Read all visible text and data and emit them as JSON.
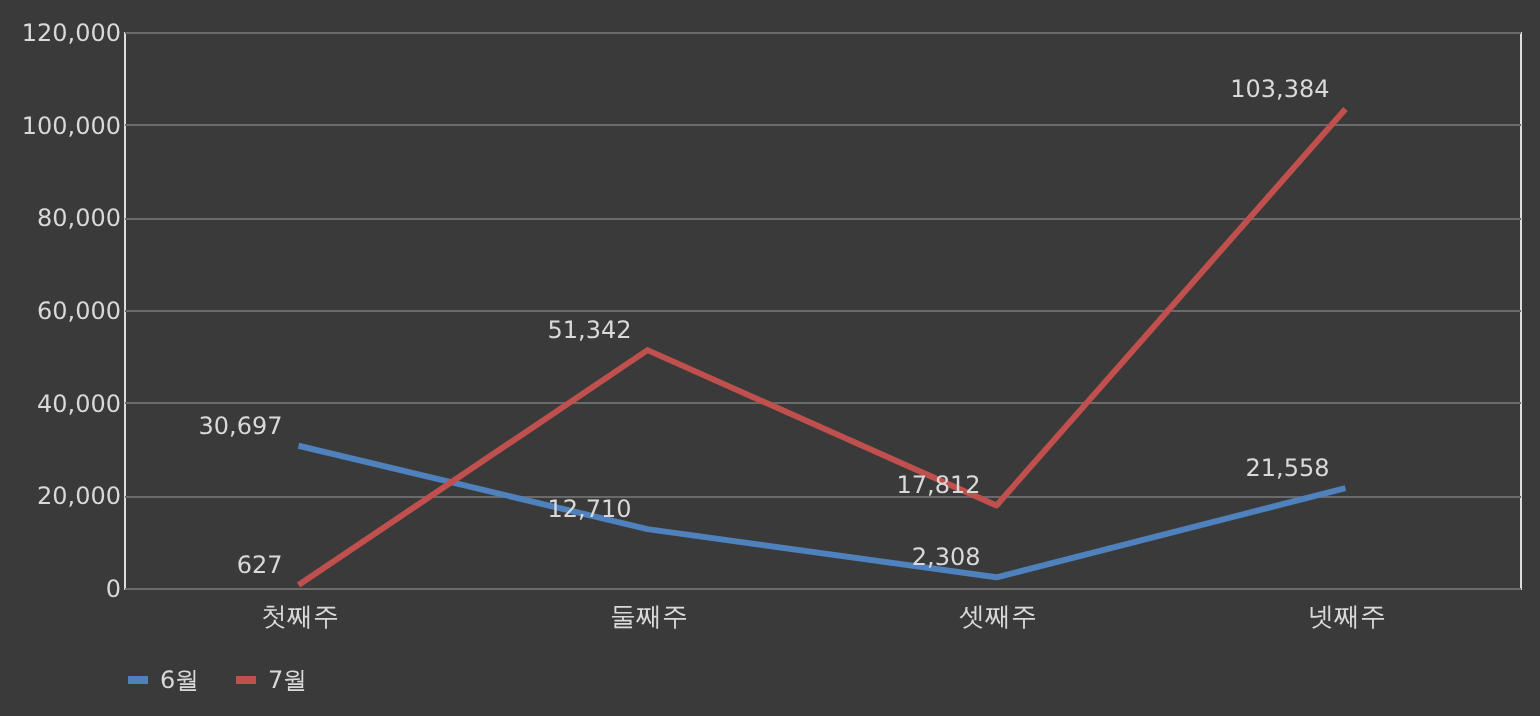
{
  "chart_data": {
    "type": "line",
    "categories": [
      "첫째주",
      "둘째주",
      "셋째주",
      "넷째주"
    ],
    "series": [
      {
        "name": "6월",
        "color": "#4f81bd",
        "values": [
          30697,
          12710,
          2308,
          21558
        ],
        "value_labels": [
          "30,697",
          "12,710",
          "2,308",
          "21,558"
        ]
      },
      {
        "name": "7월",
        "color": "#c0504d",
        "values": [
          627,
          51342,
          17812,
          103384
        ],
        "value_labels": [
          "627",
          "51,342",
          "17,812",
          "103,384"
        ]
      }
    ],
    "ylim": [
      0,
      120000
    ],
    "yticks": [
      0,
      {
        "value": 20000,
        "label": "20,000"
      },
      {
        "value": 40000,
        "label": "40,000"
      },
      {
        "value": 60000,
        "label": "60,000"
      },
      {
        "value": 80000,
        "label": "80,000"
      },
      {
        "value": 100000,
        "label": "100,000"
      },
      {
        "value": 120000,
        "label": "120,000"
      }
    ],
    "grid": "y",
    "legend": "bottom",
    "marker": "none",
    "line_style": "solid"
  }
}
